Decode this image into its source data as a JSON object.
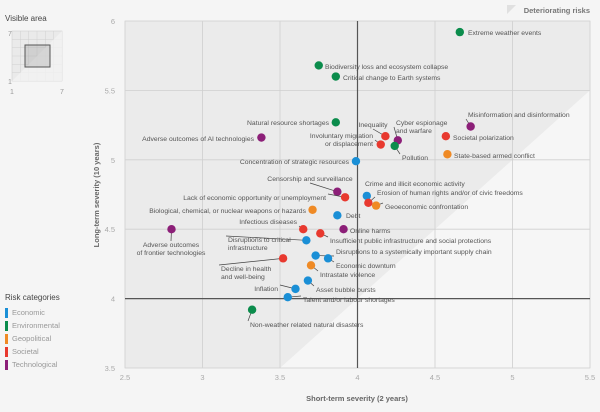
{
  "visible_area": {
    "title": "Visible area",
    "min_label": "1",
    "max_label": "7",
    "y_min_label": "1",
    "y_max_label": "7"
  },
  "legend": {
    "title": "Risk categories",
    "items": [
      {
        "label": "Economic",
        "color": "#1a8fd6"
      },
      {
        "label": "Environmental",
        "color": "#0b8c4c"
      },
      {
        "label": "Geopolitical",
        "color": "#ef8a25"
      },
      {
        "label": "Societal",
        "color": "#e8392f"
      },
      {
        "label": "Technological",
        "color": "#8c1f78"
      }
    ]
  },
  "deteriorating_label": "Deteriorating risks",
  "chart_data": {
    "type": "scatter",
    "xlabel": "Short-term severity (2 years)",
    "ylabel": "Long-term severity (10 years)",
    "xlim": [
      2.5,
      5.5
    ],
    "ylim": [
      3.5,
      6
    ],
    "xticks": [
      "2.5",
      "3",
      "3.5",
      "4",
      "4.5",
      "5",
      "5.5"
    ],
    "yticks": [
      "3.5",
      "4",
      "4.5",
      "5",
      "5.5",
      "6"
    ],
    "reference_lines": {
      "x": 4,
      "y": 4
    },
    "grid": true,
    "points": [
      {
        "label": "Extreme weather events",
        "category": "Environmental",
        "x": 4.66,
        "y": 5.92
      },
      {
        "label": "Biodiversity loss and ecosystem collapse",
        "category": "Environmental",
        "x": 3.75,
        "y": 5.68
      },
      {
        "label": "Critical change to Earth systems",
        "category": "Environmental",
        "x": 3.86,
        "y": 5.6
      },
      {
        "label": "Natural resource shortages",
        "category": "Environmental",
        "x": 3.86,
        "y": 5.27
      },
      {
        "label": "Adverse outcomes of AI technologies",
        "category": "Technological",
        "x": 3.38,
        "y": 5.16
      },
      {
        "label": "Inequality",
        "category": "Societal",
        "x": 4.18,
        "y": 5.17
      },
      {
        "label": "Involuntary migration\nor displacement",
        "category": "Societal",
        "x": 4.15,
        "y": 5.11
      },
      {
        "label": "Cyber espionage\nand warfare",
        "category": "Technological",
        "x": 4.26,
        "y": 5.14
      },
      {
        "label": "Pollution",
        "category": "Environmental",
        "x": 4.24,
        "y": 5.1
      },
      {
        "label": "Misinformation and disinformation",
        "category": "Technological",
        "x": 4.73,
        "y": 5.24
      },
      {
        "label": "Societal polarization",
        "category": "Societal",
        "x": 4.57,
        "y": 5.17
      },
      {
        "label": "State-based armed conflict",
        "category": "Geopolitical",
        "x": 4.58,
        "y": 5.04
      },
      {
        "label": "Concentration of strategic resources",
        "category": "Economic",
        "x": 3.99,
        "y": 4.99
      },
      {
        "label": "Censorship and surveillance",
        "category": "Technological",
        "x": 3.87,
        "y": 4.77
      },
      {
        "label": "Lack of economic opportunity or unemployment",
        "category": "Societal",
        "x": 3.92,
        "y": 4.73
      },
      {
        "label": "Crime and illicit economic activity",
        "category": "Economic",
        "x": 4.06,
        "y": 4.74
      },
      {
        "label": "Erosion of human rights and/or of civic freedoms",
        "category": "Societal",
        "x": 4.07,
        "y": 4.69
      },
      {
        "label": "Geoeconomic confrontation",
        "category": "Geopolitical",
        "x": 4.12,
        "y": 4.67
      },
      {
        "label": "Biological, chemical, or nuclear weapons or hazards",
        "category": "Geopolitical",
        "x": 3.71,
        "y": 4.64
      },
      {
        "label": "Debt",
        "category": "Economic",
        "x": 3.87,
        "y": 4.6
      },
      {
        "label": "Infectious diseases",
        "category": "Societal",
        "x": 3.65,
        "y": 4.5
      },
      {
        "label": "Online harms",
        "category": "Technological",
        "x": 3.91,
        "y": 4.5
      },
      {
        "label": "Insufficient public infrastructure and social protections",
        "category": "Societal",
        "x": 3.76,
        "y": 4.47
      },
      {
        "label": "Adverse outcomes\nof frontier technologies",
        "category": "Technological",
        "x": 2.8,
        "y": 4.5
      },
      {
        "label": "Disruptions to critical\ninfrastructure",
        "category": "Economic",
        "x": 3.67,
        "y": 4.42
      },
      {
        "label": "Disruptions to a systemically important supply chain",
        "category": "Economic",
        "x": 3.73,
        "y": 4.31
      },
      {
        "label": "Economic downturn",
        "category": "Economic",
        "x": 3.81,
        "y": 4.29
      },
      {
        "label": "Decline in health\nand well-being",
        "category": "Societal",
        "x": 3.52,
        "y": 4.29
      },
      {
        "label": "Intrastate violence",
        "category": "Geopolitical",
        "x": 3.7,
        "y": 4.24
      },
      {
        "label": "Asset bubble bursts",
        "category": "Economic",
        "x": 3.68,
        "y": 4.13
      },
      {
        "label": "Inflation",
        "category": "Economic",
        "x": 3.6,
        "y": 4.07
      },
      {
        "label": "Talent and/or labour shortages",
        "category": "Economic",
        "x": 3.55,
        "y": 4.01
      },
      {
        "label": "Non-weather related natural disasters",
        "category": "Environmental",
        "x": 3.32,
        "y": 3.92
      }
    ]
  }
}
